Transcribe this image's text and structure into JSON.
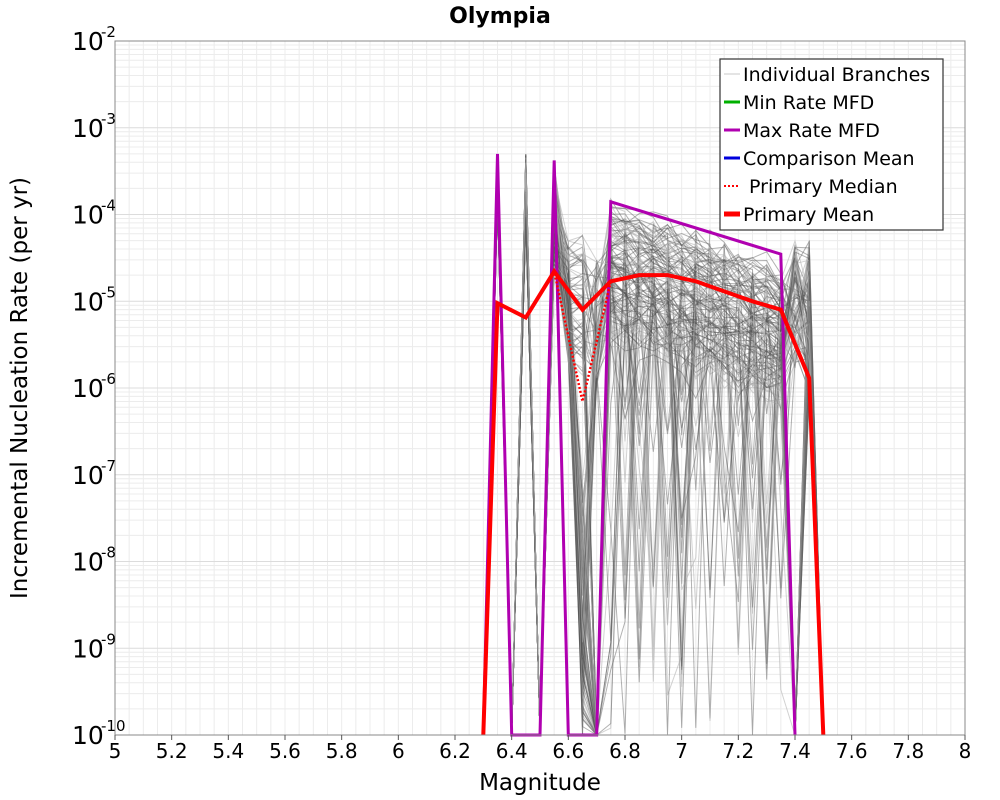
{
  "chart_data": {
    "type": "line",
    "title": "Olympia",
    "xlabel": "Magnitude",
    "ylabel": "Incremental Nucleation Rate (per yr)",
    "xlim": [
      5,
      8
    ],
    "ylim": [
      1e-10,
      0.01
    ],
    "yscale": "log",
    "grid": true,
    "legend_position": "top-right",
    "x_ticks": [
      "5",
      "5.2",
      "5.4",
      "5.6",
      "5.8",
      "6",
      "6.2",
      "6.4",
      "6.6",
      "6.8",
      "7",
      "7.2",
      "7.4",
      "7.6",
      "7.8",
      "8"
    ],
    "y_ticks": [
      {
        "base": "10",
        "exp": "-2"
      },
      {
        "base": "10",
        "exp": "-3"
      },
      {
        "base": "10",
        "exp": "-4"
      },
      {
        "base": "10",
        "exp": "-5"
      },
      {
        "base": "10",
        "exp": "-6"
      },
      {
        "base": "10",
        "exp": "-7"
      },
      {
        "base": "10",
        "exp": "-8"
      },
      {
        "base": "10",
        "exp": "-9"
      },
      {
        "base": "10",
        "exp": "-10"
      }
    ],
    "legend": [
      {
        "label": "Individual Branches",
        "color": "#c8c8c8",
        "style": "thin"
      },
      {
        "label": "Min Rate MFD",
        "color": "#00b000",
        "style": "solid"
      },
      {
        "label": "Max Rate MFD",
        "color": "#b000b0",
        "style": "solid"
      },
      {
        "label": "Comparison Mean",
        "color": "#0000dd",
        "style": "solid"
      },
      {
        "label": " Primary Median",
        "color": "#ff0000",
        "style": "dotted"
      },
      {
        "label": "Primary Mean",
        "color": "#ff0000",
        "style": "thick"
      }
    ],
    "series": [
      {
        "name": "Max Rate MFD",
        "color": "#b000b0",
        "points": [
          [
            6.3,
            1e-10
          ],
          [
            6.35,
            0.0005
          ],
          [
            6.4,
            1e-10
          ],
          [
            6.5,
            1e-10
          ],
          [
            6.55,
            0.00042
          ],
          [
            6.6,
            1e-10
          ],
          [
            6.7,
            1e-10
          ],
          [
            6.75,
            0.00014
          ],
          [
            7.35,
            3.5e-05
          ],
          [
            7.4,
            1e-10
          ]
        ]
      },
      {
        "name": "Primary Median",
        "color": "#ff0000",
        "points": [
          [
            6.3,
            1e-10
          ],
          [
            6.35,
            9.5e-06
          ],
          [
            6.45,
            6.5e-06
          ],
          [
            6.55,
            2.2e-05
          ],
          [
            6.65,
            7e-07
          ],
          [
            6.75,
            1.7e-05
          ],
          [
            6.85,
            2e-05
          ],
          [
            6.95,
            2e-05
          ],
          [
            7.05,
            1.7e-05
          ],
          [
            7.15,
            1.3e-05
          ],
          [
            7.25,
            1e-05
          ],
          [
            7.35,
            8e-06
          ],
          [
            7.45,
            1.3e-06
          ],
          [
            7.5,
            1e-10
          ]
        ]
      },
      {
        "name": "Primary Mean",
        "color": "#ff0000",
        "points": [
          [
            6.3,
            1e-10
          ],
          [
            6.35,
            9.5e-06
          ],
          [
            6.45,
            6.5e-06
          ],
          [
            6.55,
            2.2e-05
          ],
          [
            6.65,
            8e-06
          ],
          [
            6.75,
            1.7e-05
          ],
          [
            6.85,
            2e-05
          ],
          [
            6.95,
            2e-05
          ],
          [
            7.05,
            1.7e-05
          ],
          [
            7.15,
            1.3e-05
          ],
          [
            7.25,
            1e-05
          ],
          [
            7.35,
            8e-06
          ],
          [
            7.45,
            1.3e-06
          ],
          [
            7.5,
            1e-10
          ]
        ]
      }
    ]
  }
}
